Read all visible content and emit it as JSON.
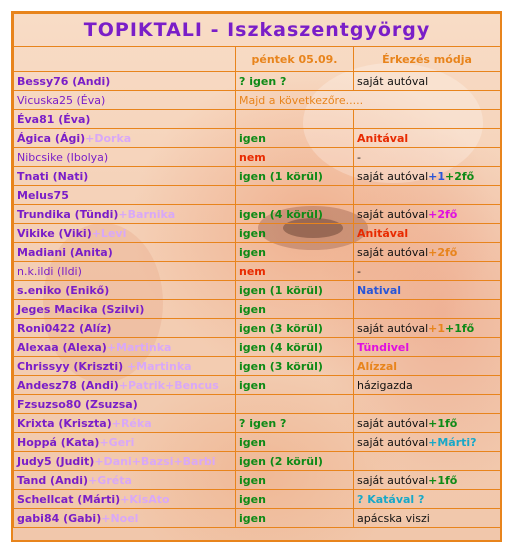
{
  "title": "TOPIKTALI - Iszkaszentgyörgy",
  "headers": {
    "date": "péntek 05.09.",
    "arrival": "Érkezés módja"
  },
  "rows": [
    {
      "name": "Bessy76 (Andi)",
      "extra": "",
      "ans": "? igen ?",
      "ans_color": "green",
      "arr": [
        {
          "t": "saját autóval",
          "c": "black"
        }
      ]
    },
    {
      "name": "Vicuska25 (Éva)",
      "extra": "",
      "ans": "Majd a következőre.....",
      "ans_color": "orange",
      "arr": [],
      "span": true
    },
    {
      "name": "Éva81 (Éva)",
      "extra": "",
      "ans": "",
      "ans_color": "",
      "arr": []
    },
    {
      "name": "Ágica (Ági)",
      "extra": "+Dorka",
      "ans": "igen",
      "ans_color": "green",
      "arr": [
        {
          "t": "Anitával",
          "c": "red"
        }
      ]
    },
    {
      "name": "Nibcsike (Ibolya)",
      "extra": "",
      "ans": "nem",
      "ans_color": "red",
      "arr": [
        {
          "t": "-",
          "c": "black"
        }
      ]
    },
    {
      "name": "Tnati (Nati)",
      "extra": "",
      "ans": "igen (1 körül)",
      "ans_color": "green",
      "arr": [
        {
          "t": "saját autóval",
          "c": "black"
        },
        {
          "t": "+1",
          "c": "blue"
        },
        {
          "t": "+2fő",
          "c": "green"
        }
      ]
    },
    {
      "name": "Melus75",
      "extra": "",
      "ans": "",
      "ans_color": "",
      "arr": []
    },
    {
      "name": "Trundika (Tündi)",
      "extra": "+Barnika",
      "ans": "igen (4 körül)",
      "ans_color": "green",
      "arr": [
        {
          "t": "saját autóval",
          "c": "black"
        },
        {
          "t": "+2fő",
          "c": "magenta"
        }
      ]
    },
    {
      "name": "Vikike (Viki)",
      "extra": "+Levi",
      "ans": "igen",
      "ans_color": "green",
      "arr": [
        {
          "t": "Anitával",
          "c": "red"
        }
      ]
    },
    {
      "name": "Madiani (Anita)",
      "extra": "",
      "ans": "igen",
      "ans_color": "green",
      "arr": [
        {
          "t": "saját autóval",
          "c": "black"
        },
        {
          "t": "+2fő",
          "c": "orange"
        }
      ]
    },
    {
      "name": "n.k.ildi (Ildi)",
      "extra": "",
      "ans": "nem",
      "ans_color": "red",
      "arr": [
        {
          "t": "-",
          "c": "black"
        }
      ]
    },
    {
      "name": "s.eniko (Enikő)",
      "extra": "",
      "ans": "igen (1 körül)",
      "ans_color": "green",
      "arr": [
        {
          "t": "Natival",
          "c": "blue"
        }
      ]
    },
    {
      "name": "Jeges Macika (Szilvi)",
      "extra": "",
      "ans": "igen",
      "ans_color": "green",
      "arr": []
    },
    {
      "name": "Roni0422 (Alíz)",
      "extra": "",
      "ans": "igen (3 körül)",
      "ans_color": "green",
      "arr": [
        {
          "t": "saját autóval",
          "c": "black"
        },
        {
          "t": "+1",
          "c": "orange"
        },
        {
          "t": "+1fő",
          "c": "green"
        }
      ]
    },
    {
      "name": "Alexaa (Alexa)",
      "extra": "+Martinka",
      "ans": "igen (4 körül)",
      "ans_color": "green",
      "arr": [
        {
          "t": "Tündivel",
          "c": "magenta"
        }
      ]
    },
    {
      "name": "Chrissyy (Kriszti)",
      "extra": " +Martinka",
      "ans": "igen (3 körül)",
      "ans_color": "green",
      "arr": [
        {
          "t": "Alízzal",
          "c": "orange"
        }
      ]
    },
    {
      "name": "Andesz78 (Andi)",
      "extra": "+Patrik+Bencus",
      "ans": "igen",
      "ans_color": "green",
      "arr": [
        {
          "t": "házigazda",
          "c": "black"
        }
      ]
    },
    {
      "name": "Fzsuzso80 (Zsuzsa)",
      "extra": "",
      "ans": "",
      "ans_color": "",
      "arr": []
    },
    {
      "name": "Krixta (Kriszta)",
      "extra": "+Réka",
      "ans": "? igen ?",
      "ans_color": "green",
      "arr": [
        {
          "t": "saját autóval",
          "c": "black"
        },
        {
          "t": "+1fő",
          "c": "green"
        }
      ]
    },
    {
      "name": "Hoppá (Kata)",
      "extra": "+Geri",
      "ans": "igen",
      "ans_color": "green",
      "arr": [
        {
          "t": "saját autóval",
          "c": "black"
        },
        {
          "t": "+Márti?",
          "c": "cyan"
        }
      ]
    },
    {
      "name": "Judy5 (Judit)",
      "extra": "+Dani+Bazsi+Barbi",
      "ans": "igen (2 körül)",
      "ans_color": "green",
      "arr": []
    },
    {
      "name": "Tand (Andi)",
      "extra": "+Gréta",
      "ans": "igen",
      "ans_color": "green",
      "arr": [
        {
          "t": "saját autóval",
          "c": "black"
        },
        {
          "t": "+1fő",
          "c": "green"
        }
      ]
    },
    {
      "name": "Schellcat (Márti)",
      "extra": "+KisAto",
      "ans": "igen",
      "ans_color": "green",
      "arr": [
        {
          "t": "? Katával ?",
          "c": "cyan"
        }
      ]
    },
    {
      "name": "gabi84 (Gabi)",
      "extra": "+Noel",
      "ans": "igen",
      "ans_color": "green",
      "arr": [
        {
          "t": "apácska viszi",
          "c": "black"
        }
      ]
    }
  ]
}
